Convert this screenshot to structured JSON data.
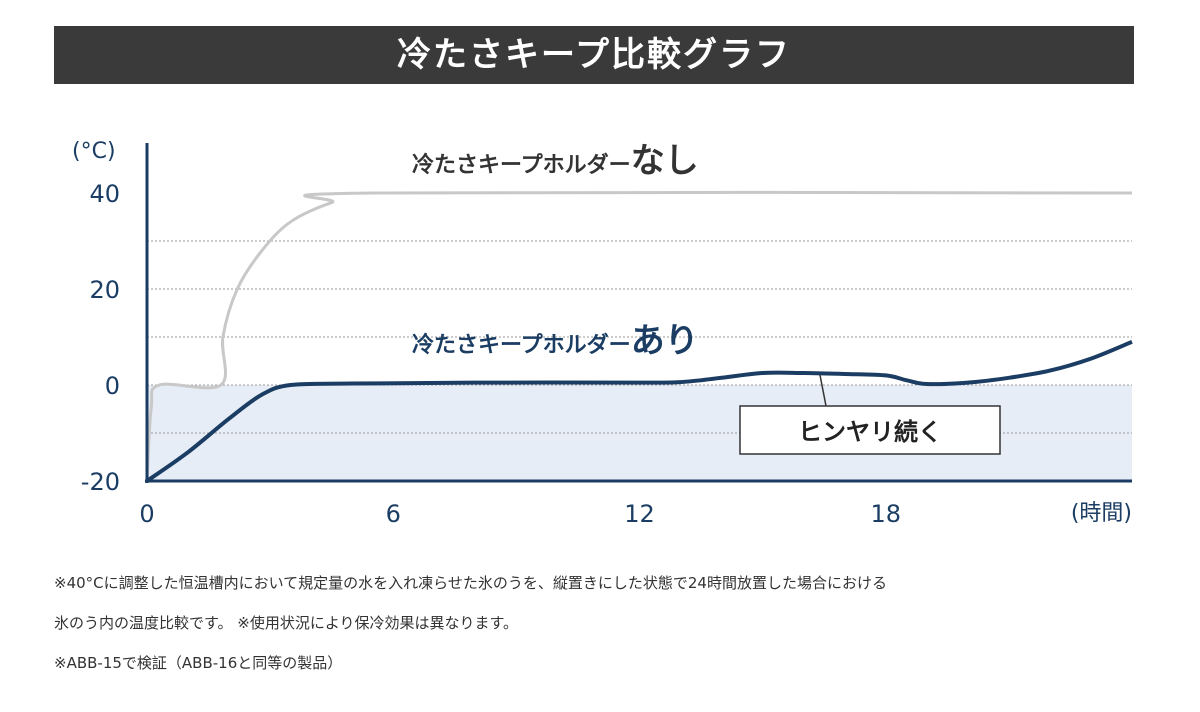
{
  "title": "冷たさキープ比較グラフ",
  "chart_data": {
    "type": "line",
    "title": "冷たさキープ比較グラフ",
    "ylabel": "(°C)",
    "xlabel": "(時間)",
    "xlim": [
      0,
      24
    ],
    "ylim": [
      -20,
      45
    ],
    "xticks": [
      "0",
      "6",
      "12",
      "18"
    ],
    "yticks": [
      "40",
      "20",
      "0",
      "-20"
    ],
    "grid": "dotted horizontal lines every 10°C",
    "shaded_region": [
      -20,
      0
    ],
    "series": [
      {
        "name": "冷たさキープホルダーなし",
        "name_prefix": "冷たさキープホルダー",
        "name_suffix": "なし",
        "color": "#c8c8c8",
        "x": [
          0,
          0.1,
          0.3,
          1.8,
          1.85,
          2.2,
          2.8,
          3.5,
          4.5,
          5.5,
          24
        ],
        "y": [
          -20,
          -5,
          0,
          0,
          10,
          20,
          28,
          34,
          38,
          40,
          40
        ]
      },
      {
        "name": "冷たさキープホルダーあり",
        "name_prefix": "冷たさキープホルダー",
        "name_suffix": "あり",
        "color": "#1b3d63",
        "x": [
          0,
          1,
          2,
          2.8,
          3.5,
          5,
          8,
          12,
          13,
          14,
          15,
          16,
          17,
          18,
          18.5,
          19,
          20,
          21,
          22,
          23,
          24
        ],
        "y": [
          -20,
          -14,
          -7,
          -2,
          0,
          0.3,
          0.5,
          0.5,
          0.6,
          1.5,
          2.5,
          2.5,
          2.3,
          2,
          1,
          0.2,
          0.5,
          1.5,
          3,
          5.5,
          9
        ]
      }
    ],
    "annotation": "ヒンヤリ続く"
  },
  "notes": [
    "※40°Cに調整した恒温槽内において規定量の水を入れ凍らせた氷のうを、縦置きにした状態で24時間放置した場合における",
    "氷のう内の温度比較です。 ※使用状況により保冷効果は異なります。",
    "※ABB-15で検証（ABB-16と同等の製品）"
  ]
}
